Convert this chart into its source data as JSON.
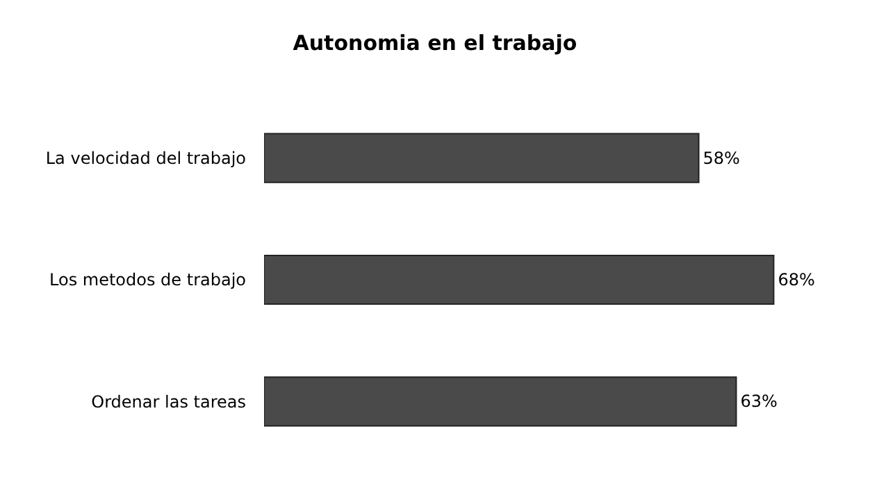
{
  "chart_data": {
    "type": "bar",
    "orientation": "horizontal",
    "title": "Autonomia en el trabajo",
    "categories": [
      "La velocidad del trabajo",
      "Los metodos de trabajo",
      "Ordenar las tareas"
    ],
    "values": [
      58,
      68,
      63
    ],
    "value_labels": [
      "58%",
      "68%",
      "63%"
    ],
    "color": "#4a4a4a",
    "tick_labels": "y",
    "legend": false
  }
}
